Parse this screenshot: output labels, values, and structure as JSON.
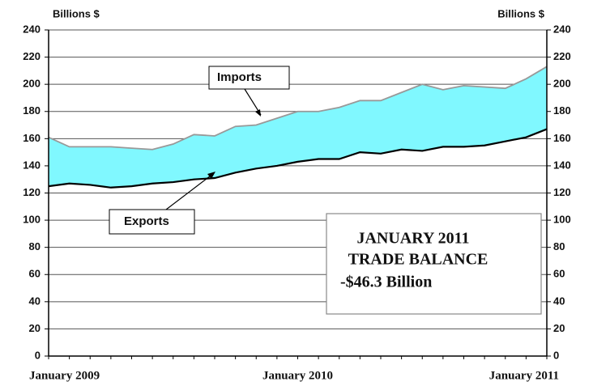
{
  "chart_data": {
    "type": "area",
    "y_label": "Billions $",
    "y2_label": "Billions $",
    "categories": [
      "January 2009",
      null,
      null,
      null,
      null,
      null,
      null,
      null,
      null,
      null,
      null,
      null,
      "January 2010",
      null,
      null,
      null,
      null,
      null,
      null,
      null,
      null,
      null,
      null,
      null,
      "January 2011"
    ],
    "series": [
      {
        "name": "Imports",
        "color": "#999999",
        "values": [
          161,
          154,
          154,
          154,
          153,
          152,
          156,
          163,
          162,
          169,
          170,
          175,
          180,
          180,
          183,
          188,
          188,
          194,
          200,
          196,
          199,
          198,
          197,
          204,
          213
        ]
      },
      {
        "name": "Exports",
        "color": "#000000",
        "values": [
          125,
          127,
          126,
          124,
          125,
          127,
          128,
          130,
          131,
          135,
          138,
          140,
          143,
          145,
          145,
          150,
          149,
          152,
          151,
          154,
          154,
          155,
          158,
          161,
          167
        ]
      }
    ],
    "fill_color": "#80f8ff",
    "ylim": [
      0,
      240
    ],
    "yticks": [
      0,
      20,
      40,
      60,
      80,
      100,
      120,
      140,
      160,
      180,
      200,
      220,
      240
    ],
    "y2lim": [
      0,
      240
    ],
    "y2ticks": [
      0,
      20,
      40,
      60,
      80,
      100,
      120,
      140,
      160,
      180,
      200,
      220,
      240
    ],
    "grid": true,
    "annotation": [
      "JANUARY 2011",
      "TRADE BALANCE",
      "-$46.3 Billion"
    ]
  }
}
